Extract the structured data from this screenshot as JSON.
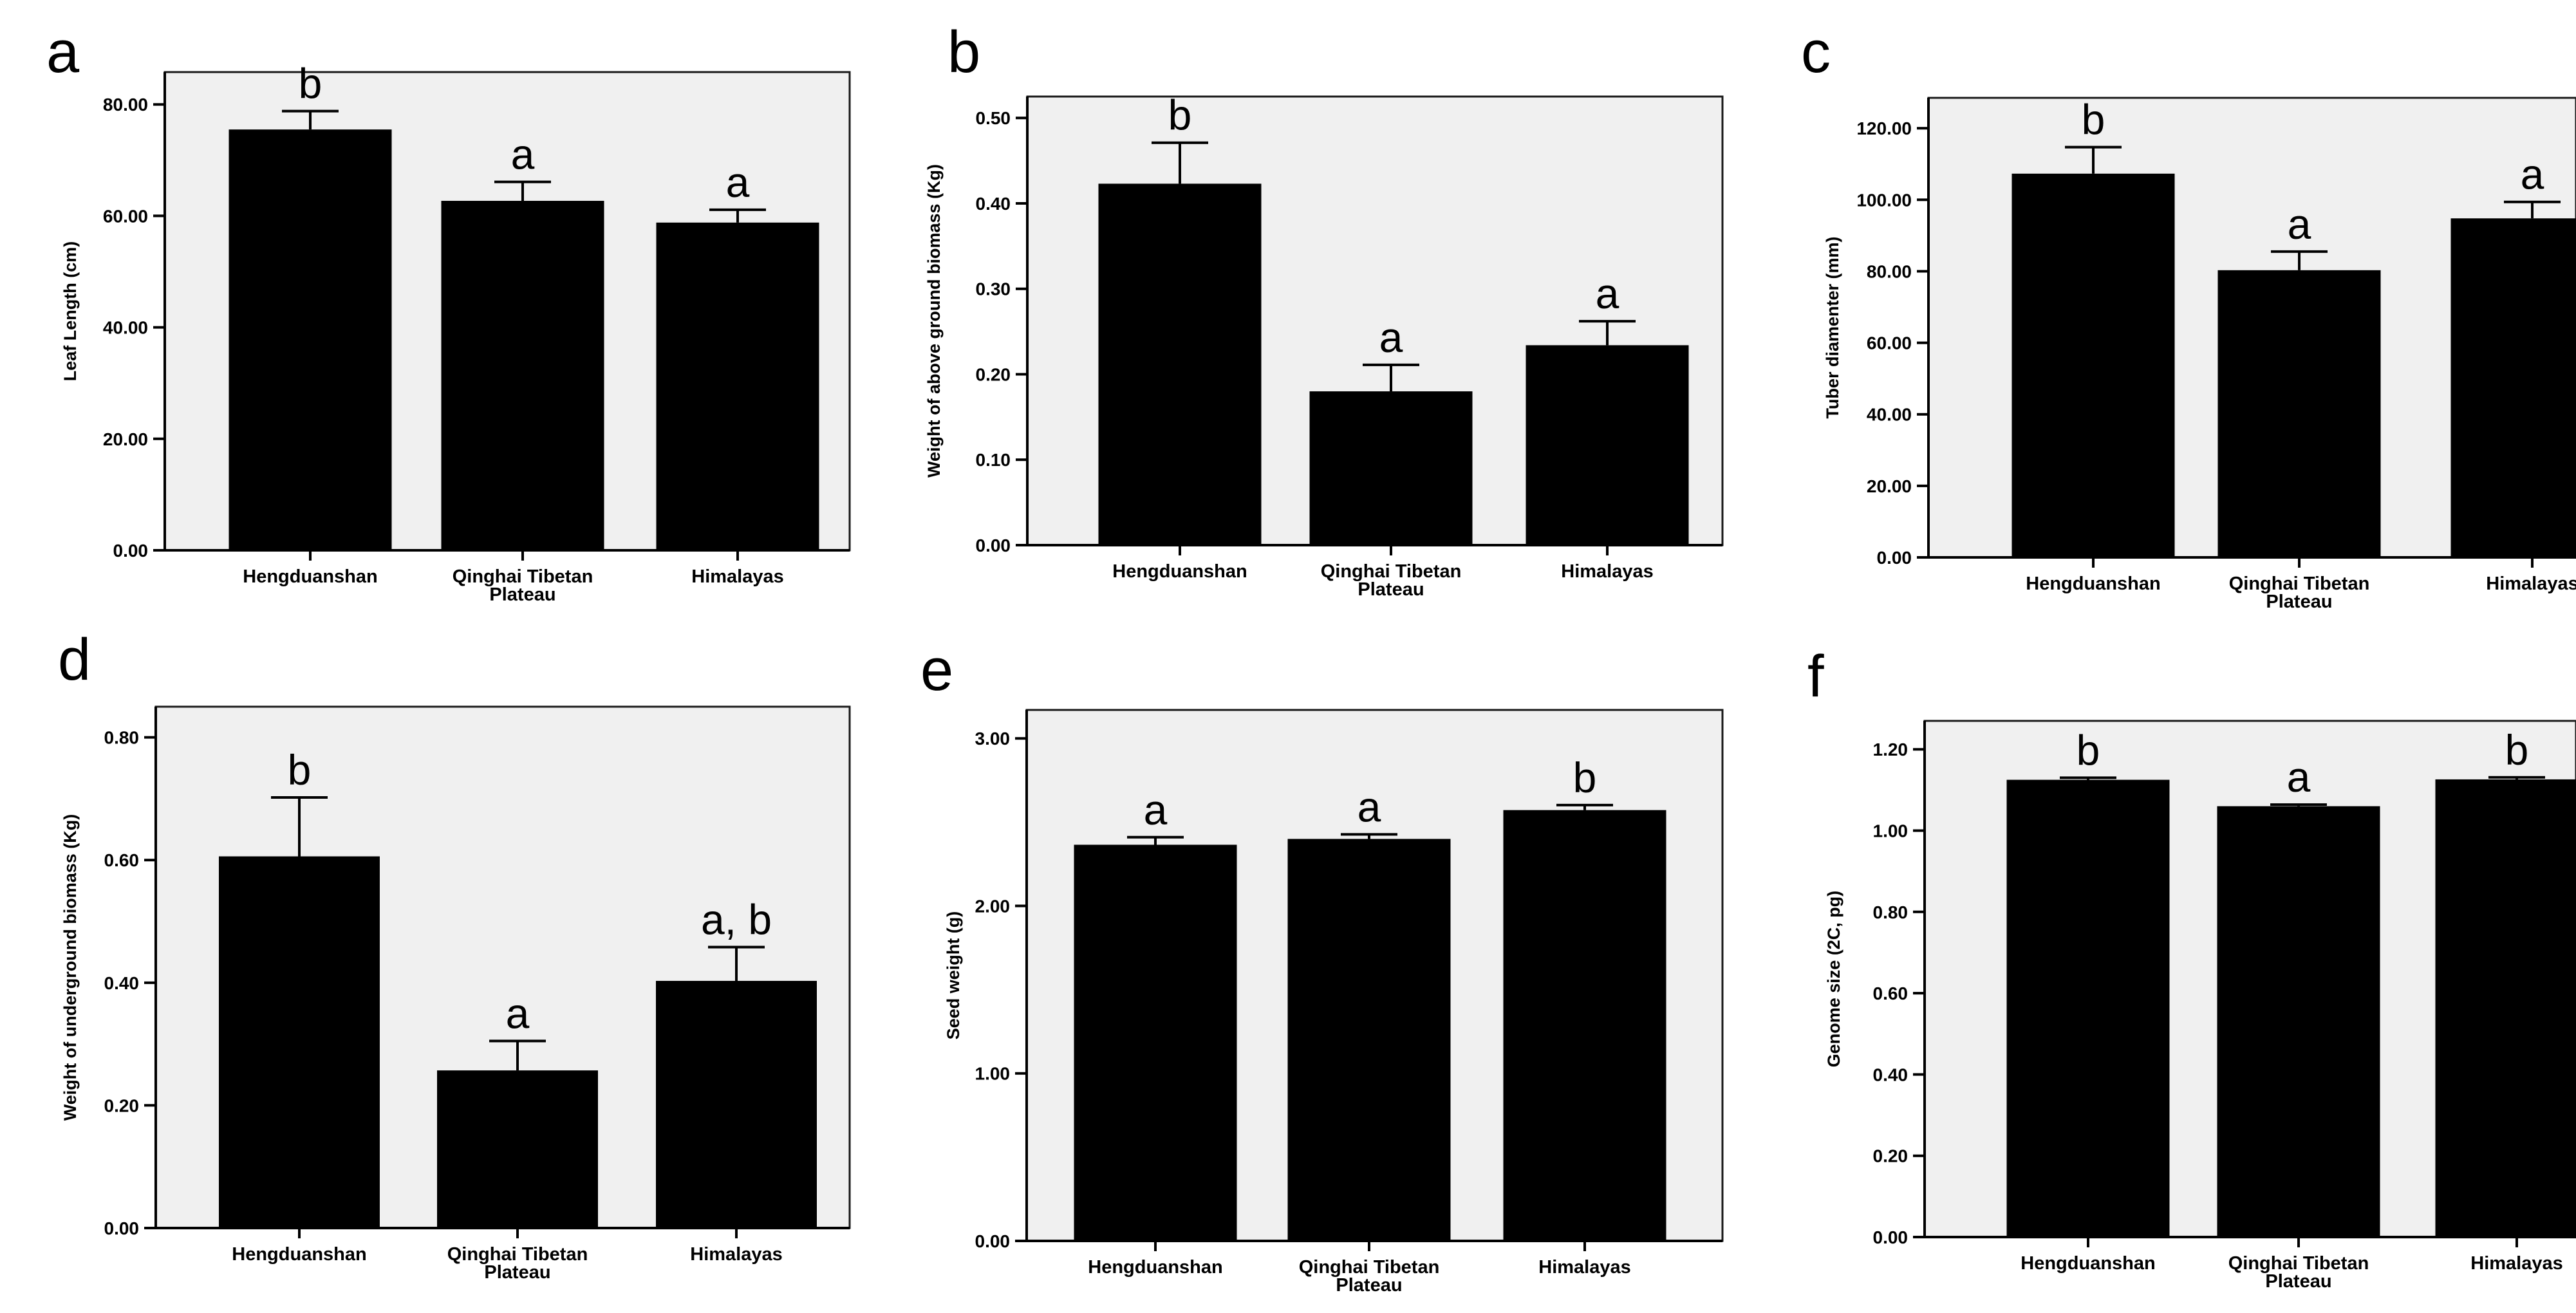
{
  "figure": {
    "panels": [
      "a",
      "b",
      "c",
      "d",
      "e",
      "f"
    ]
  },
  "chart_data": [
    {
      "panel": "a",
      "type": "bar",
      "title": "",
      "xlabel": "",
      "ylabel": "Leaf Length (cm)",
      "categories": [
        [
          "Hengduanshan"
        ],
        [
          "Qinghai Tibetan",
          "Plateau"
        ],
        [
          "Himalayas"
        ]
      ],
      "values": [
        75.5,
        62.7,
        58.8
      ],
      "errors": [
        3.3,
        3.4,
        2.3
      ],
      "significance": [
        "b",
        "a",
        "a"
      ],
      "ylim": [
        0,
        85.8
      ],
      "yticks": [
        "0.00",
        "20.00",
        "40.00",
        "60.00",
        "80.00"
      ],
      "ytick_values": [
        0,
        20,
        40,
        60,
        80
      ]
    },
    {
      "panel": "b",
      "type": "bar",
      "title": "",
      "xlabel": "",
      "ylabel": "Weight of above ground biomass (Kg)",
      "categories": [
        [
          "Hengduanshan"
        ],
        [
          "Qinghai Tibetan",
          "Plateau"
        ],
        [
          "Himalayas"
        ]
      ],
      "values": [
        0.423,
        0.18,
        0.234
      ],
      "errors": [
        0.048,
        0.031,
        0.028
      ],
      "significance": [
        "b",
        "a",
        "a"
      ],
      "ylim": [
        0,
        0.525
      ],
      "yticks": [
        "0.00",
        "0.10",
        "0.20",
        "0.30",
        "0.40",
        "0.50"
      ],
      "ytick_values": [
        0,
        0.1,
        0.2,
        0.3,
        0.4,
        0.5
      ]
    },
    {
      "panel": "c",
      "type": "bar",
      "title": "",
      "xlabel": "",
      "ylabel": "Tuber diamenter (mm)",
      "categories": [
        [
          "Hengduanshan"
        ],
        [
          "Qinghai Tibetan",
          "Plateau"
        ],
        [
          "Himalayas"
        ]
      ],
      "values": [
        107.3,
        80.3,
        94.8
      ],
      "errors": [
        7.4,
        5.2,
        4.6
      ],
      "significance": [
        "b",
        "a",
        "a"
      ],
      "ylim": [
        0,
        128.5
      ],
      "yticks": [
        "0.00",
        "20.00",
        "40.00",
        "60.00",
        "80.00",
        "100.00",
        "120.00"
      ],
      "ytick_values": [
        0,
        20,
        40,
        60,
        80,
        100,
        120
      ]
    },
    {
      "panel": "d",
      "type": "bar",
      "title": "",
      "xlabel": "",
      "ylabel": "Weight of underground biomass (Kg)",
      "categories": [
        [
          "Hengduanshan"
        ],
        [
          "Qinghai Tibetan",
          "Plateau"
        ],
        [
          "Himalayas"
        ]
      ],
      "values": [
        0.606,
        0.257,
        0.403
      ],
      "errors": [
        0.096,
        0.048,
        0.055
      ],
      "significance": [
        "b",
        "a",
        "a, b"
      ],
      "ylim": [
        0,
        0.85
      ],
      "yticks": [
        "0.00",
        "0.20",
        "0.40",
        "0.60",
        "0.80"
      ],
      "ytick_values": [
        0,
        0.2,
        0.4,
        0.6,
        0.8
      ]
    },
    {
      "panel": "e",
      "type": "bar",
      "title": "",
      "xlabel": "",
      "ylabel": "Seed weight (g)",
      "categories": [
        [
          "Hengduanshan"
        ],
        [
          "Qinghai Tibetan",
          "Plateau"
        ],
        [
          "Himalayas"
        ]
      ],
      "values": [
        2.365,
        2.4,
        2.572
      ],
      "errors": [
        0.045,
        0.027,
        0.03
      ],
      "significance": [
        "a",
        "a",
        "b"
      ],
      "ylim": [
        0,
        3.17
      ],
      "yticks": [
        "0.00",
        "1.00",
        "2.00",
        "3.00"
      ],
      "ytick_values": [
        0,
        1,
        2,
        3
      ]
    },
    {
      "panel": "f",
      "type": "bar",
      "title": "",
      "xlabel": "",
      "ylabel": "Genome size (2C, pg)",
      "categories": [
        [
          "Hengduanshan"
        ],
        [
          "Qinghai Tibetan",
          "Plateau"
        ],
        [
          "Himalayas"
        ]
      ],
      "values": [
        1.125,
        1.06,
        1.126
      ],
      "errors": [
        0.005,
        0.004,
        0.005
      ],
      "significance": [
        "b",
        "a",
        "b"
      ],
      "ylim": [
        0,
        1.27
      ],
      "yticks": [
        "0.00",
        "0.20",
        "0.40",
        "0.60",
        "0.80",
        "1.00",
        "1.20"
      ],
      "ytick_values": [
        0,
        0.2,
        0.4,
        0.6,
        0.8,
        1.0,
        1.2
      ]
    }
  ]
}
